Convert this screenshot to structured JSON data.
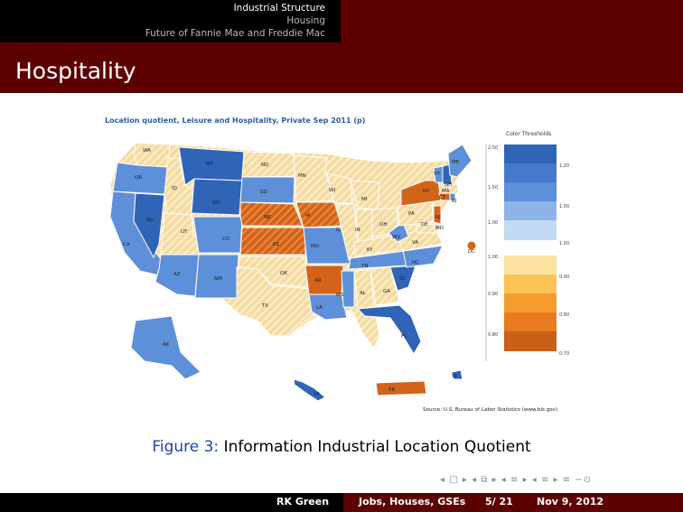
{
  "nav": {
    "sections": [
      "Industrial Structure",
      "Housing",
      "Future of Fannie Mae and Freddie Mac"
    ]
  },
  "frame": {
    "title": "Hospitality"
  },
  "map": {
    "title": "Location quotient, Leisure and Hospitality, Private Sep 2011 (p)",
    "legend_title": "Color Thresholds",
    "blue_thresholds": [
      "1.20",
      "1.10",
      "1.00"
    ],
    "orange_thresholds": [
      "1.00",
      "0.90",
      "0.80",
      "0.70"
    ],
    "axis_labels": [
      "2.50",
      "1.50",
      "1.00",
      "1.00",
      "0.90",
      "0.80"
    ],
    "source": "Source: U.S. Bureau of Labor Statistics (www.bls.gov)",
    "colors": {
      "dark_blue": "#2f64b7",
      "mid_blue": "#5e8fd9",
      "light_blue": "#9fc1ee",
      "dark_orange": "#d4631a",
      "mid_orange": "#f19230",
      "light_yellow": "#f6dba0"
    },
    "state_labels": [
      "WA",
      "OR",
      "CA",
      "NV",
      "ID",
      "MT",
      "WY",
      "UT",
      "AZ",
      "CO",
      "NM",
      "ND",
      "SD",
      "NE",
      "KS",
      "OK",
      "TX",
      "MN",
      "IA",
      "MO",
      "AR",
      "LA",
      "WI",
      "IL",
      "MI",
      "IN",
      "OH",
      "KY",
      "TN",
      "MS",
      "AL",
      "GA",
      "FL",
      "SC",
      "NC",
      "VA",
      "WV",
      "PA",
      "NY",
      "VT",
      "NH",
      "ME",
      "MA",
      "RI",
      "CT",
      "NJ",
      "DE",
      "MD",
      "DC",
      "AK",
      "HI",
      "PR",
      "VI"
    ]
  },
  "caption": {
    "figure_label": "Figure 3:",
    "text": "Information Industrial Location Quotient"
  },
  "footer": {
    "author": "RK Green",
    "title": "Jobs, Houses, GSEs",
    "page": "5/ 21",
    "date": "Nov 9, 2012"
  }
}
